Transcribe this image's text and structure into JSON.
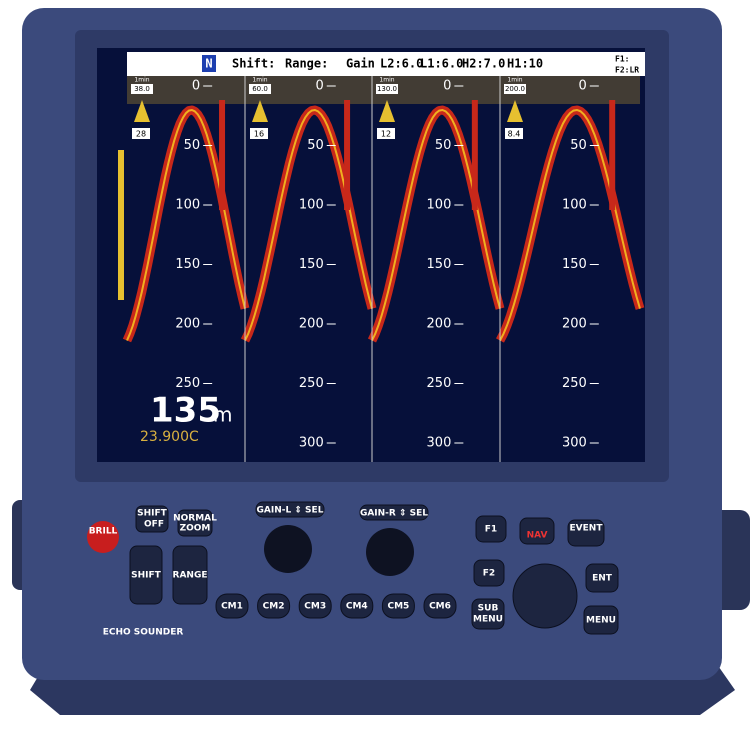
{
  "status_bar": {
    "north": "N",
    "shift": "Shift:",
    "range": "Range:",
    "gain": "Gain",
    "l2": "L2:6.0",
    "l1": "L1:6.0",
    "h2": "H2:7.0",
    "h1": "H1:10",
    "f1": "F1:",
    "f2": "F2:LR"
  },
  "panels": [
    {
      "time": "1min",
      "range": "38.0",
      "gain": "28",
      "depths": [
        0,
        50,
        100,
        150,
        200,
        250
      ]
    },
    {
      "time": "1min",
      "range": "60.0",
      "gain": "16",
      "depths": [
        0,
        50,
        100,
        150,
        200,
        250,
        300
      ]
    },
    {
      "time": "1min",
      "range": "130.0",
      "gain": "12",
      "depths": [
        0,
        50,
        100,
        150,
        200,
        250,
        300
      ]
    },
    {
      "time": "1min",
      "range": "200.0",
      "gain": "8.4",
      "depths": [
        0,
        50,
        100,
        150,
        200,
        250,
        300
      ]
    }
  ],
  "readout": {
    "depth": "135",
    "unit": "m",
    "temperature": "23.900C"
  },
  "buttons": {
    "brill": "BRILL",
    "shift_off_1": "SHIFT",
    "shift_off_2": "OFF",
    "normal": "NORMAL",
    "zoom": "ZOOM",
    "gain_l": "GAIN-L ⇕ SEL",
    "gain_r": "GAIN-R ⇕ SEL",
    "f1": "F1",
    "nav": "NAV",
    "event": "EVENT",
    "shift": "SHIFT",
    "range": "RANGE",
    "f2": "F2",
    "ent": "ENT",
    "cm": [
      "CM1",
      "CM2",
      "CM3",
      "CM4",
      "CM5",
      "CM6"
    ],
    "sub": "SUB",
    "sub_menu": "MENU",
    "menu": "MENU"
  },
  "brand": "ECHO SOUNDER"
}
